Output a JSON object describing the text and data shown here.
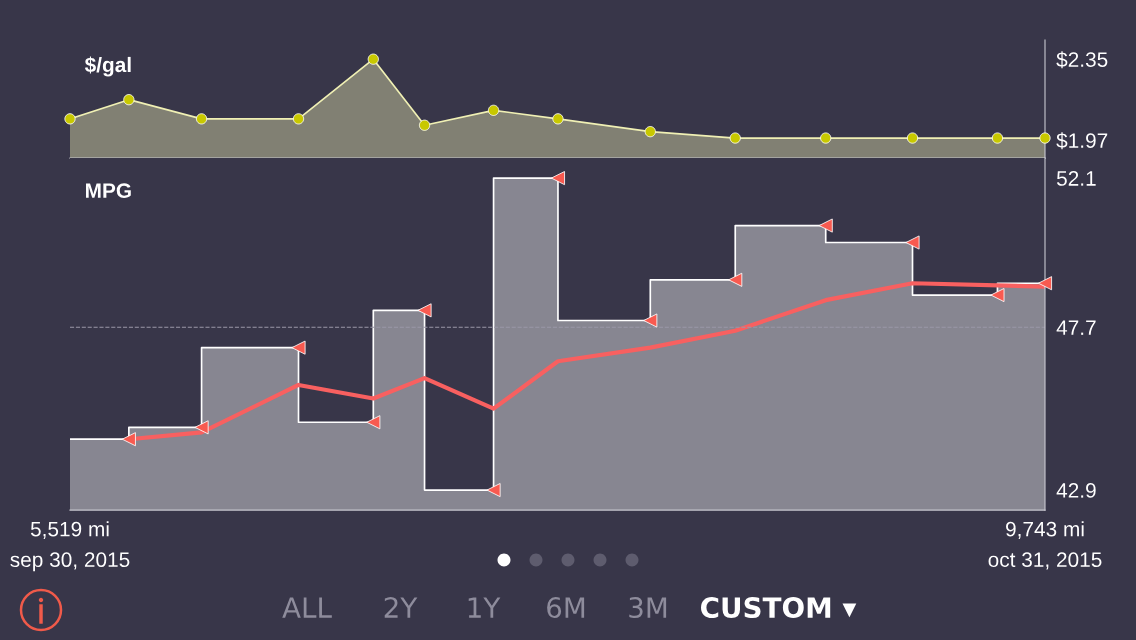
{
  "chart_data": [
    {
      "type": "area",
      "title": "$/gal",
      "xlim": [
        5519,
        9743
      ],
      "ylim": [
        1.886,
        2.44
      ],
      "yticks": [
        {
          "value": 2.35,
          "label": "$2.35"
        },
        {
          "value": 1.97,
          "label": "$1.97"
        }
      ],
      "tick_labels": "y",
      "grid": false,
      "series": [
        {
          "color": "#f0f0b4",
          "marker": "none",
          "x": [
            5519,
            5774,
            6089,
            6509,
            6833,
            7055,
            7354,
            7633,
            8033,
            8401,
            8793,
            9169,
            9537,
            9743
          ],
          "values": [
            2.07,
            2.16,
            2.07,
            2.07,
            2.35,
            2.04,
            2.11,
            2.07,
            2.01,
            1.98,
            1.98,
            1.98,
            1.98,
            1.98
          ]
        },
        {
          "type": "scatter",
          "color": "#c8c800",
          "marker": "circle",
          "x": [
            5519,
            5774,
            6089,
            6509,
            6833,
            7055,
            7354,
            7633,
            8033,
            8401,
            8793,
            9169,
            9537,
            9743
          ],
          "values": [
            2.07,
            2.16,
            2.07,
            2.07,
            2.35,
            2.04,
            2.11,
            2.07,
            2.01,
            1.98,
            1.98,
            1.98,
            1.98,
            1.98
          ]
        }
      ]
    },
    {
      "type": "area",
      "title": "MPG",
      "xlim": [
        5519,
        9743
      ],
      "ylim": [
        42.31,
        52.69
      ],
      "yticks": [
        52.1,
        47.7,
        42.9
      ],
      "xticks": [
        {
          "value": 5519,
          "label": "5,519 mi"
        },
        {
          "value": 9743,
          "label": "9,743 mi"
        }
      ],
      "grid": false,
      "ref_lines": [
        {
          "axis": "y",
          "value": 47.7,
          "label": null,
          "color": "#9a98a8",
          "line_style": "dashed"
        }
      ],
      "annotations": [
        "sep 30, 2015",
        "oct 31, 2015",
        "ALL",
        "2Y",
        "1Y",
        "6M",
        "3M",
        "CUSTOM ▾"
      ],
      "series": [
        {
          "color": "#ffffff",
          "marker": "none",
          "x": [
            5519,
            5774,
            5774,
            6089,
            6089,
            6509,
            6509,
            6833,
            6833,
            7055,
            7055,
            7354,
            7354,
            7633,
            7633,
            8033,
            8033,
            8401,
            8401,
            8793,
            8793,
            9169,
            9169,
            9537,
            9537,
            9743
          ],
          "values": [
            44.4,
            44.4,
            44.75,
            44.75,
            47.1,
            47.1,
            44.9,
            44.9,
            48.2,
            48.2,
            42.9,
            42.9,
            52.1,
            52.1,
            47.9,
            47.9,
            49.1,
            49.1,
            50.7,
            50.7,
            50.2,
            50.2,
            48.65,
            48.65,
            49.0,
            49.0
          ]
        },
        {
          "type": "line",
          "color": "#f86060",
          "marker": "none",
          "x": [
            5774,
            6089,
            6509,
            6833,
            7055,
            7354,
            7633,
            8033,
            8401,
            8793,
            9169,
            9743
          ],
          "values": [
            44.4,
            44.6,
            46.0,
            45.6,
            46.2,
            45.3,
            46.7,
            47.1,
            47.6,
            48.5,
            49.0,
            48.9
          ]
        },
        {
          "type": "scatter",
          "color": "#f85a50",
          "marker": "triangle",
          "x": [
            5774,
            6089,
            6509,
            6833,
            7055,
            7354,
            7633,
            8033,
            8401,
            8793,
            9169,
            9537,
            9743
          ],
          "values": [
            44.4,
            44.75,
            47.1,
            44.9,
            48.2,
            42.9,
            52.1,
            47.9,
            49.1,
            50.7,
            50.2,
            48.65,
            49.0
          ]
        }
      ]
    }
  ]
}
